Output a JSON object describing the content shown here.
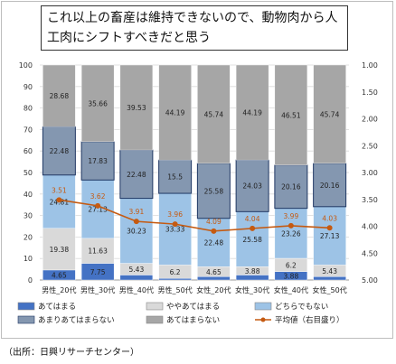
{
  "chart_data": {
    "type": "bar",
    "stacked": true,
    "title": "これ以上の畜産は維持できないので、動物肉から人工肉にシフトすべきだと思う",
    "categories": [
      "男性_20代",
      "男性_30代",
      "男性_40代",
      "男性_50代",
      "女性_20代",
      "女性_30代",
      "女性_40代",
      "女性_50代"
    ],
    "ylim": [
      0,
      100
    ],
    "yticks": [
      "0",
      "10",
      "20",
      "30",
      "40",
      "50",
      "60",
      "70",
      "80",
      "90",
      "100"
    ],
    "y2lim": [
      1.0,
      5.0
    ],
    "y2ticks": [
      "1.00",
      "1.50",
      "2.00",
      "2.50",
      "3.00",
      "3.50",
      "4.00",
      "4.50",
      "5.00"
    ],
    "y2_inverted": true,
    "grid": true,
    "legend_position": "bottom",
    "series": [
      {
        "name": "あてはまる",
        "color": "#4472c4",
        "values": [
          4.65,
          7.75,
          2.33,
          0.78,
          1.55,
          2.33,
          3.88,
          1.55
        ],
        "labels": [
          "4.65",
          "7.75",
          "2.33",
          "0.78",
          "1.55",
          "2.33",
          "3.88",
          "1.55"
        ]
      },
      {
        "name": "ややあてはまる",
        "color": "#d9d9d9",
        "values": [
          19.38,
          11.63,
          5.43,
          6.2,
          4.65,
          3.88,
          6.2,
          5.43
        ],
        "labels": [
          "19.38",
          "11.63",
          "5.43",
          "6.2",
          "4.65",
          "3.88",
          "6.2",
          "5.43"
        ]
      },
      {
        "name": "どちらでもない",
        "color": "#9dc3e6",
        "values": [
          24.81,
          27.13,
          30.23,
          33.33,
          22.48,
          25.58,
          23.26,
          27.13
        ],
        "labels": [
          "24.81",
          "27.13",
          "30.23",
          "33.33",
          "22.48",
          "25.58",
          "23.26",
          "27.13"
        ]
      },
      {
        "name": "あまりあてはまらない",
        "color": "#8497b0",
        "values": [
          22.48,
          17.83,
          22.48,
          15.5,
          25.58,
          24.03,
          20.16,
          20.16
        ],
        "labels": [
          "22.48",
          "17.83",
          "22.48",
          "15.5",
          "25.58",
          "24.03",
          "20.16",
          "20.16"
        ]
      },
      {
        "name": "あてはまらない",
        "color": "#a6a6a6",
        "values": [
          28.68,
          35.66,
          39.53,
          44.19,
          45.74,
          44.19,
          46.51,
          45.74
        ],
        "labels": [
          "28.68",
          "35.66",
          "39.53",
          "44.19",
          "45.74",
          "44.19",
          "46.51",
          "45.74"
        ]
      }
    ],
    "line_series": {
      "name": "平均値（右目盛り）",
      "color": "#c55a11",
      "values": [
        3.51,
        3.62,
        3.91,
        3.96,
        4.09,
        4.04,
        3.99,
        4.03
      ],
      "labels": [
        "3.51",
        "3.62",
        "3.91",
        "3.96",
        "4.09",
        "4.04",
        "3.99",
        "4.03"
      ]
    }
  },
  "source_note": "（出所：日興リサーチセンター）"
}
